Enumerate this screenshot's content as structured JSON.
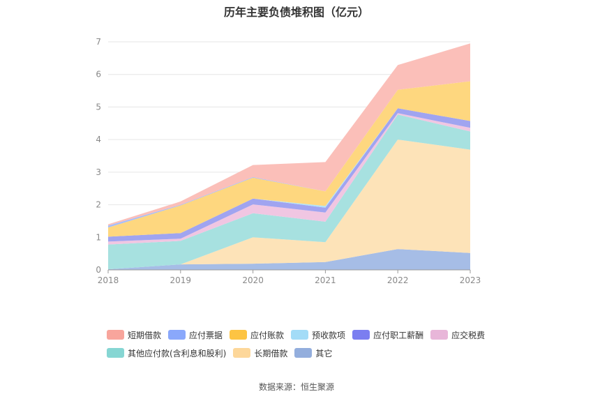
{
  "chart_data": {
    "type": "area",
    "stacked": true,
    "title": "历年主要负债堆积图（亿元）",
    "categories": [
      "2018",
      "2019",
      "2020",
      "2021",
      "2022",
      "2023"
    ],
    "ylim": [
      0,
      7
    ],
    "yticks": [
      0,
      1,
      2,
      3,
      4,
      5,
      6,
      7
    ],
    "grid": true,
    "legend_position": "bottom",
    "source": "数据来源：恒生聚源",
    "series": [
      {
        "name": "其它",
        "color": "#a6bde6",
        "values": [
          0.02,
          0.17,
          0.19,
          0.24,
          0.64,
          0.52
        ]
      },
      {
        "name": "长期借款",
        "color": "#fde3b8",
        "values": [
          0.0,
          0.0,
          0.81,
          0.61,
          3.36,
          3.17
        ]
      },
      {
        "name": "其他应付款(含利息和股利)",
        "color": "#a7e1e0",
        "values": [
          0.76,
          0.72,
          0.74,
          0.63,
          0.77,
          0.56
        ]
      },
      {
        "name": "应交税费",
        "color": "#f0c6e2",
        "values": [
          0.09,
          0.07,
          0.27,
          0.28,
          0.04,
          0.11
        ]
      },
      {
        "name": "应付职工薪酬",
        "color": "#a0a4f0",
        "values": [
          0.15,
          0.17,
          0.18,
          0.15,
          0.15,
          0.21
        ]
      },
      {
        "name": "预收款项",
        "color": "#b2e2f8",
        "values": [
          0.0,
          0.0,
          0.0,
          0.05,
          0.0,
          0.0
        ]
      },
      {
        "name": "应付账款",
        "color": "#fed77f",
        "values": [
          0.28,
          0.85,
          0.64,
          0.45,
          0.57,
          1.22
        ]
      },
      {
        "name": "应付票据",
        "color": "#a5bdfa",
        "values": [
          0.06,
          0.02,
          0.02,
          0.0,
          0.0,
          0.0
        ]
      },
      {
        "name": "短期借款",
        "color": "#fbbfb9",
        "values": [
          0.04,
          0.1,
          0.37,
          0.9,
          0.76,
          1.16
        ]
      }
    ]
  },
  "legend": {
    "row1": [
      {
        "label": "短期借款",
        "color": "#f8a59c"
      },
      {
        "label": "应付票据",
        "color": "#8aa8fb"
      },
      {
        "label": "应付账款",
        "color": "#fdc443"
      },
      {
        "label": "预收款项",
        "color": "#a3dcf7"
      },
      {
        "label": "应付职工薪酬",
        "color": "#7b7ef0"
      },
      {
        "label": "应交税费",
        "color": "#e8b6d9"
      }
    ],
    "row2": [
      {
        "label": "其他应付款(含利息和股利)",
        "color": "#86d6d3"
      },
      {
        "label": "长期借款",
        "color": "#fdd79a"
      },
      {
        "label": "其它",
        "color": "#93aedd"
      }
    ]
  }
}
